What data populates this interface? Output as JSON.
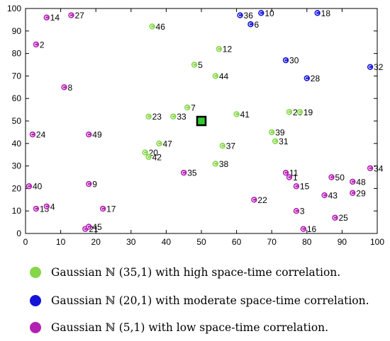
{
  "chart_data": {
    "type": "scatter",
    "xlim": [
      0,
      100
    ],
    "ylim": [
      0,
      100
    ],
    "xticks": [
      0,
      10,
      20,
      30,
      40,
      50,
      60,
      70,
      80,
      90,
      100
    ],
    "yticks": [
      0,
      10,
      20,
      30,
      40,
      50,
      60,
      70,
      80,
      90,
      100
    ],
    "grid": false,
    "sink": {
      "x": 50,
      "y": 50,
      "color": "#000000",
      "fill": "#2ecc2e"
    },
    "series": [
      {
        "name": "Gaussian ℕ (35,1)  with high space-time correlation.",
        "color": "#86d64a",
        "points": [
          {
            "label": "46",
            "x": 36,
            "y": 92
          },
          {
            "label": "12",
            "x": 55,
            "y": 82
          },
          {
            "label": "5",
            "x": 48,
            "y": 75
          },
          {
            "label": "44",
            "x": 54,
            "y": 70
          },
          {
            "label": "7",
            "x": 46,
            "y": 56
          },
          {
            "label": "23",
            "x": 35,
            "y": 52
          },
          {
            "label": "33",
            "x": 42,
            "y": 52
          },
          {
            "label": "41",
            "x": 60,
            "y": 53
          },
          {
            "label": "26",
            "x": 75,
            "y": 54
          },
          {
            "label": "19",
            "x": 78,
            "y": 54
          },
          {
            "label": "39",
            "x": 70,
            "y": 45
          },
          {
            "label": "31",
            "x": 71,
            "y": 41
          },
          {
            "label": "47",
            "x": 38,
            "y": 40
          },
          {
            "label": "37",
            "x": 56,
            "y": 39
          },
          {
            "label": "20",
            "x": 34,
            "y": 36
          },
          {
            "label": "42",
            "x": 35,
            "y": 34
          },
          {
            "label": "38",
            "x": 54,
            "y": 31
          }
        ]
      },
      {
        "name": "Gaussian ℕ (20,1)  with moderate space-time correlation.",
        "color": "#1414d8",
        "points": [
          {
            "label": "36",
            "x": 61,
            "y": 97
          },
          {
            "label": "10",
            "x": 67,
            "y": 98
          },
          {
            "label": "18",
            "x": 83,
            "y": 98
          },
          {
            "label": "6",
            "x": 64,
            "y": 93
          },
          {
            "label": "30",
            "x": 74,
            "y": 77
          },
          {
            "label": "32",
            "x": 98,
            "y": 74
          },
          {
            "label": "28",
            "x": 80,
            "y": 69
          }
        ]
      },
      {
        "name": "Gaussian ℕ (5,1)  with low space-time correlation.",
        "color": "#b220b2",
        "points": [
          {
            "label": "14",
            "x": 6,
            "y": 96
          },
          {
            "label": "27",
            "x": 13,
            "y": 97
          },
          {
            "label": "2",
            "x": 3,
            "y": 84
          },
          {
            "label": "8",
            "x": 11,
            "y": 65
          },
          {
            "label": "24",
            "x": 2,
            "y": 44
          },
          {
            "label": "49",
            "x": 18,
            "y": 44
          },
          {
            "label": "35",
            "x": 45,
            "y": 27
          },
          {
            "label": "40",
            "x": 1,
            "y": 21
          },
          {
            "label": "9",
            "x": 18,
            "y": 22
          },
          {
            "label": "11",
            "x": 74,
            "y": 27
          },
          {
            "label": "1",
            "x": 75,
            "y": 25
          },
          {
            "label": "15",
            "x": 77,
            "y": 21
          },
          {
            "label": "50",
            "x": 87,
            "y": 25
          },
          {
            "label": "48",
            "x": 93,
            "y": 23
          },
          {
            "label": "34",
            "x": 98,
            "y": 29
          },
          {
            "label": "43",
            "x": 85,
            "y": 17
          },
          {
            "label": "29",
            "x": 93,
            "y": 18
          },
          {
            "label": "22",
            "x": 65,
            "y": 15
          },
          {
            "label": "13",
            "x": 3,
            "y": 11
          },
          {
            "label": "4",
            "x": 6,
            "y": 12
          },
          {
            "label": "17",
            "x": 22,
            "y": 11
          },
          {
            "label": "3",
            "x": 77,
            "y": 10
          },
          {
            "label": "25",
            "x": 88,
            "y": 7
          },
          {
            "label": "16",
            "x": 79,
            "y": 2
          },
          {
            "label": "21",
            "x": 17,
            "y": 2
          },
          {
            "label": "45",
            "x": 18,
            "y": 3
          }
        ]
      }
    ]
  },
  "legend": [
    {
      "label": "Gaussian ℕ (35,1)  with high space-time correlation.",
      "color": "#86d64a"
    },
    {
      "label": "Gaussian ℕ (20,1)  with moderate space-time correlation.",
      "color": "#1414d8"
    },
    {
      "label": "Gaussian ℕ (5,1)  with low space-time correlation.",
      "color": "#b220b2"
    }
  ]
}
